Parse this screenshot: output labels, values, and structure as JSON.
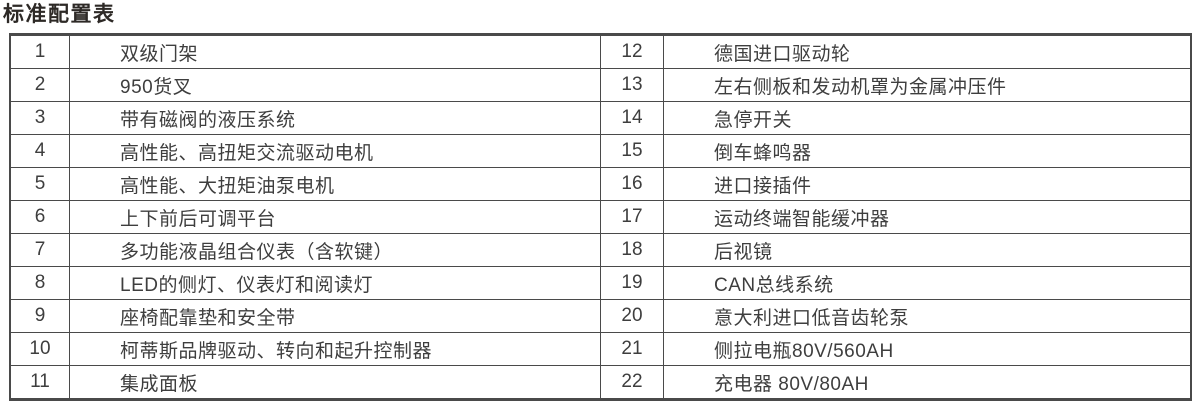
{
  "title": "标准配置表",
  "colors": {
    "background": "#ffffff",
    "title": "#2d2926",
    "text": "#3e3e3e",
    "border": "#4a4a4a"
  },
  "table": {
    "left": [
      {
        "no": "1",
        "desc": "双级门架"
      },
      {
        "no": "2",
        "desc": "950货叉"
      },
      {
        "no": "3",
        "desc": "带有磁阀的液压系统"
      },
      {
        "no": "4",
        "desc": "高性能、高扭矩交流驱动电机"
      },
      {
        "no": "5",
        "desc": "高性能、大扭矩油泵电机"
      },
      {
        "no": "6",
        "desc": "上下前后可调平台"
      },
      {
        "no": "7",
        "desc": "多功能液晶组合仪表（含软键）"
      },
      {
        "no": "8",
        "desc": "LED的侧灯、仪表灯和阅读灯"
      },
      {
        "no": "9",
        "desc": "座椅配靠垫和安全带"
      },
      {
        "no": "10",
        "desc": "柯蒂斯品牌驱动、转向和起升控制器"
      },
      {
        "no": "11",
        "desc": "集成面板"
      }
    ],
    "right": [
      {
        "no": "12",
        "desc": "德国进口驱动轮"
      },
      {
        "no": "13",
        "desc": "左右侧板和发动机罩为金属冲压件"
      },
      {
        "no": "14",
        "desc": "急停开关"
      },
      {
        "no": "15",
        "desc": "倒车蜂鸣器"
      },
      {
        "no": "16",
        "desc": "进口接插件"
      },
      {
        "no": "17",
        "desc": "运动终端智能缓冲器"
      },
      {
        "no": "18",
        "desc": "后视镜"
      },
      {
        "no": "19",
        "desc": "CAN总线系统"
      },
      {
        "no": "20",
        "desc": "意大利进口低音齿轮泵"
      },
      {
        "no": "21",
        "desc": "侧拉电瓶80V/560AH"
      },
      {
        "no": "22",
        "desc": "充电器 80V/80AH"
      }
    ]
  }
}
